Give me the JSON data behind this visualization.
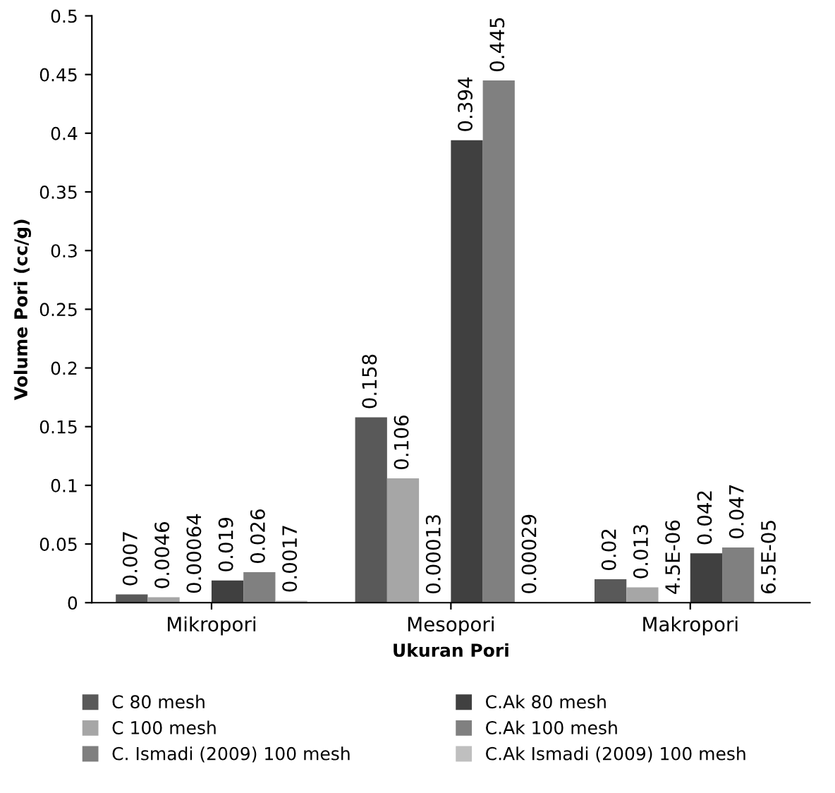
{
  "chart_data": {
    "type": "bar",
    "xlabel": "Ukuran Pori",
    "ylabel": "Volume Pori (cc/g)",
    "categories": [
      "Mikropori",
      "Mesopori",
      "Makropori"
    ],
    "series": [
      {
        "name": "C 80 mesh",
        "color": "#595959",
        "values": [
          0.007,
          0.158,
          0.02
        ],
        "value_labels": [
          "0.007",
          "0.158",
          "0.02"
        ]
      },
      {
        "name": "C 100 mesh",
        "color": "#a6a6a6",
        "values": [
          0.0046,
          0.106,
          0.013
        ],
        "value_labels": [
          "0.0046",
          "0.106",
          "0.013"
        ]
      },
      {
        "name": "C. Ismadi (2009) 100 mesh",
        "color": "#7f7f7f",
        "values": [
          0.00064,
          0.00013,
          4.5e-06
        ],
        "value_labels": [
          "0.00064",
          "0.00013",
          "4.5E-06"
        ]
      },
      {
        "name": "C.Ak 80 mesh",
        "color": "#404040",
        "values": [
          0.019,
          0.394,
          0.042
        ],
        "value_labels": [
          "0.019",
          "0.394",
          "0.042"
        ]
      },
      {
        "name": "C.Ak 100 mesh",
        "color": "#808080",
        "values": [
          0.026,
          0.445,
          0.047
        ],
        "value_labels": [
          "0.026",
          "0.445",
          "0.047"
        ]
      },
      {
        "name": "C.Ak Ismadi (2009) 100 mesh",
        "color": "#bfbfbf",
        "values": [
          0.0017,
          0.00029,
          6.5e-05
        ],
        "value_labels": [
          "0.0017",
          "0.00029",
          "6.5E-05"
        ]
      }
    ],
    "ylim": [
      0,
      0.5
    ],
    "yticks": [
      0,
      0.05,
      0.1,
      0.15,
      0.2,
      0.25,
      0.3,
      0.35,
      0.4,
      0.45,
      0.5
    ],
    "grid": false,
    "legend": "bottom"
  }
}
